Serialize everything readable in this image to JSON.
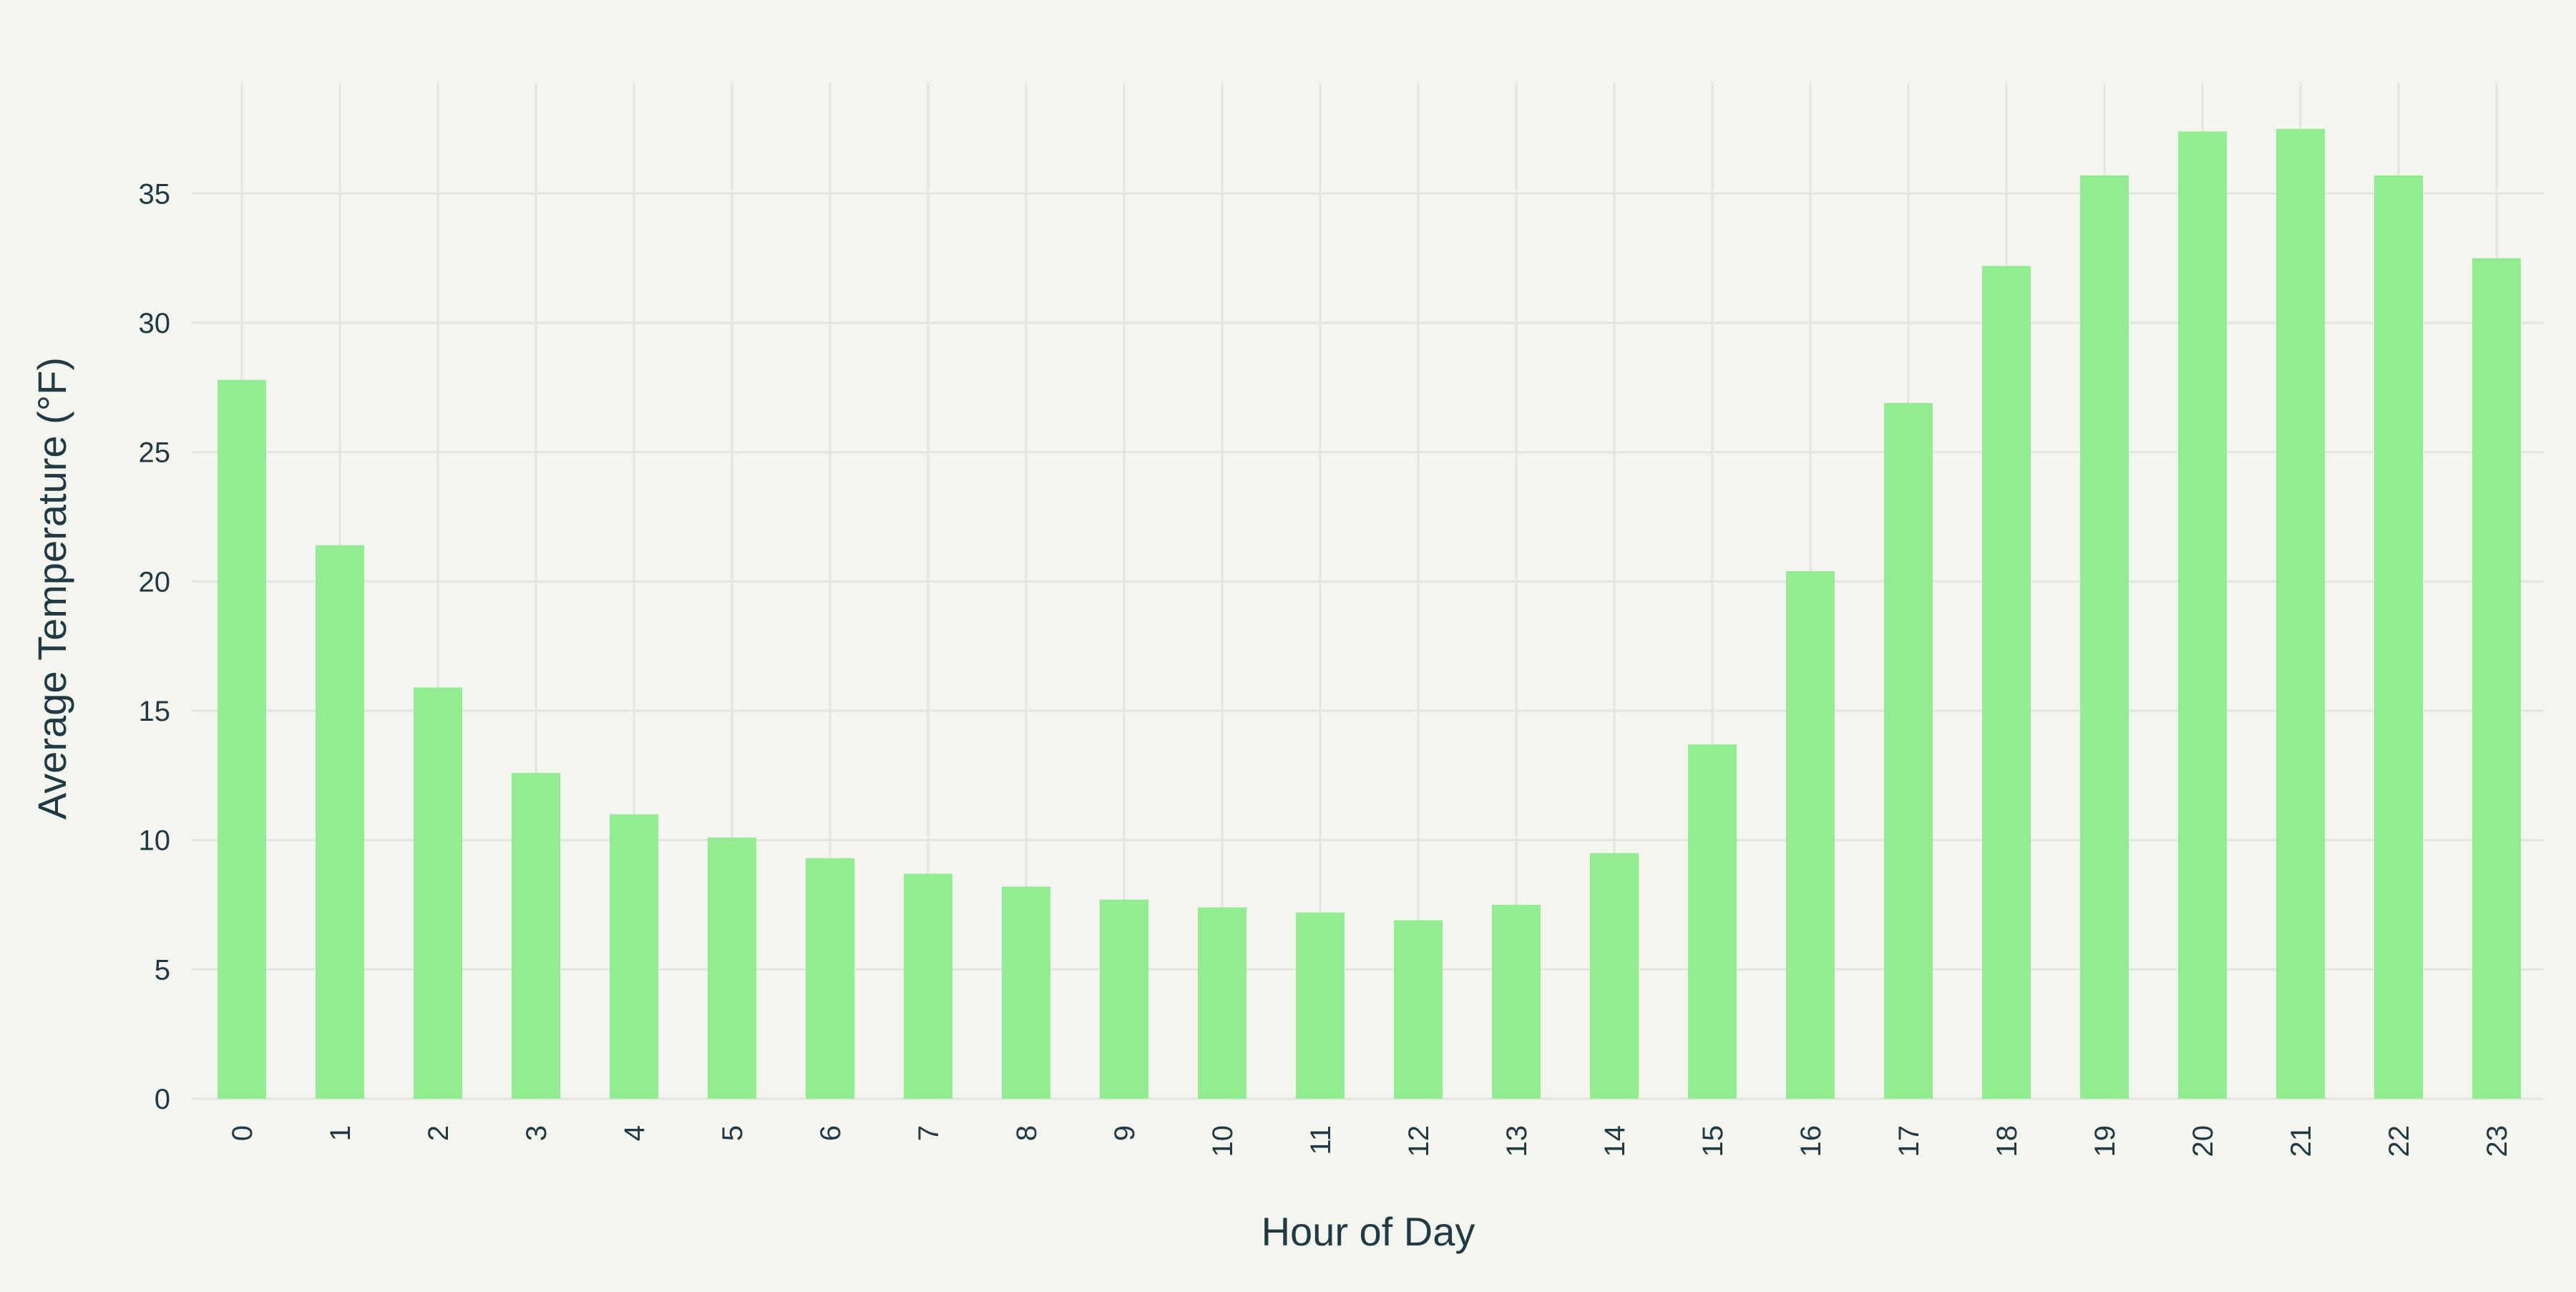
{
  "chart_data": {
    "type": "bar",
    "title": "",
    "xlabel": "Hour of Day",
    "ylabel": "Average Temperature (°F)",
    "categories": [
      "0",
      "1",
      "2",
      "3",
      "4",
      "5",
      "6",
      "7",
      "8",
      "9",
      "10",
      "11",
      "12",
      "13",
      "14",
      "15",
      "16",
      "17",
      "18",
      "19",
      "20",
      "21",
      "22",
      "23"
    ],
    "values": [
      27.8,
      21.4,
      15.9,
      12.6,
      11.0,
      10.1,
      9.3,
      8.7,
      8.2,
      7.7,
      7.4,
      7.2,
      6.9,
      7.5,
      9.5,
      13.7,
      20.4,
      26.9,
      32.2,
      35.7,
      37.4,
      37.5,
      35.7,
      32.5
    ],
    "yticks": [
      0,
      5,
      10,
      15,
      20,
      25,
      30,
      35
    ],
    "ylim": [
      0,
      39.3
    ],
    "grid": true,
    "legend": "none",
    "colors": {
      "bar": "#90ee90",
      "background": "#f4f5ef",
      "grid": "#e4e5df",
      "text": "#1f3a44"
    }
  }
}
